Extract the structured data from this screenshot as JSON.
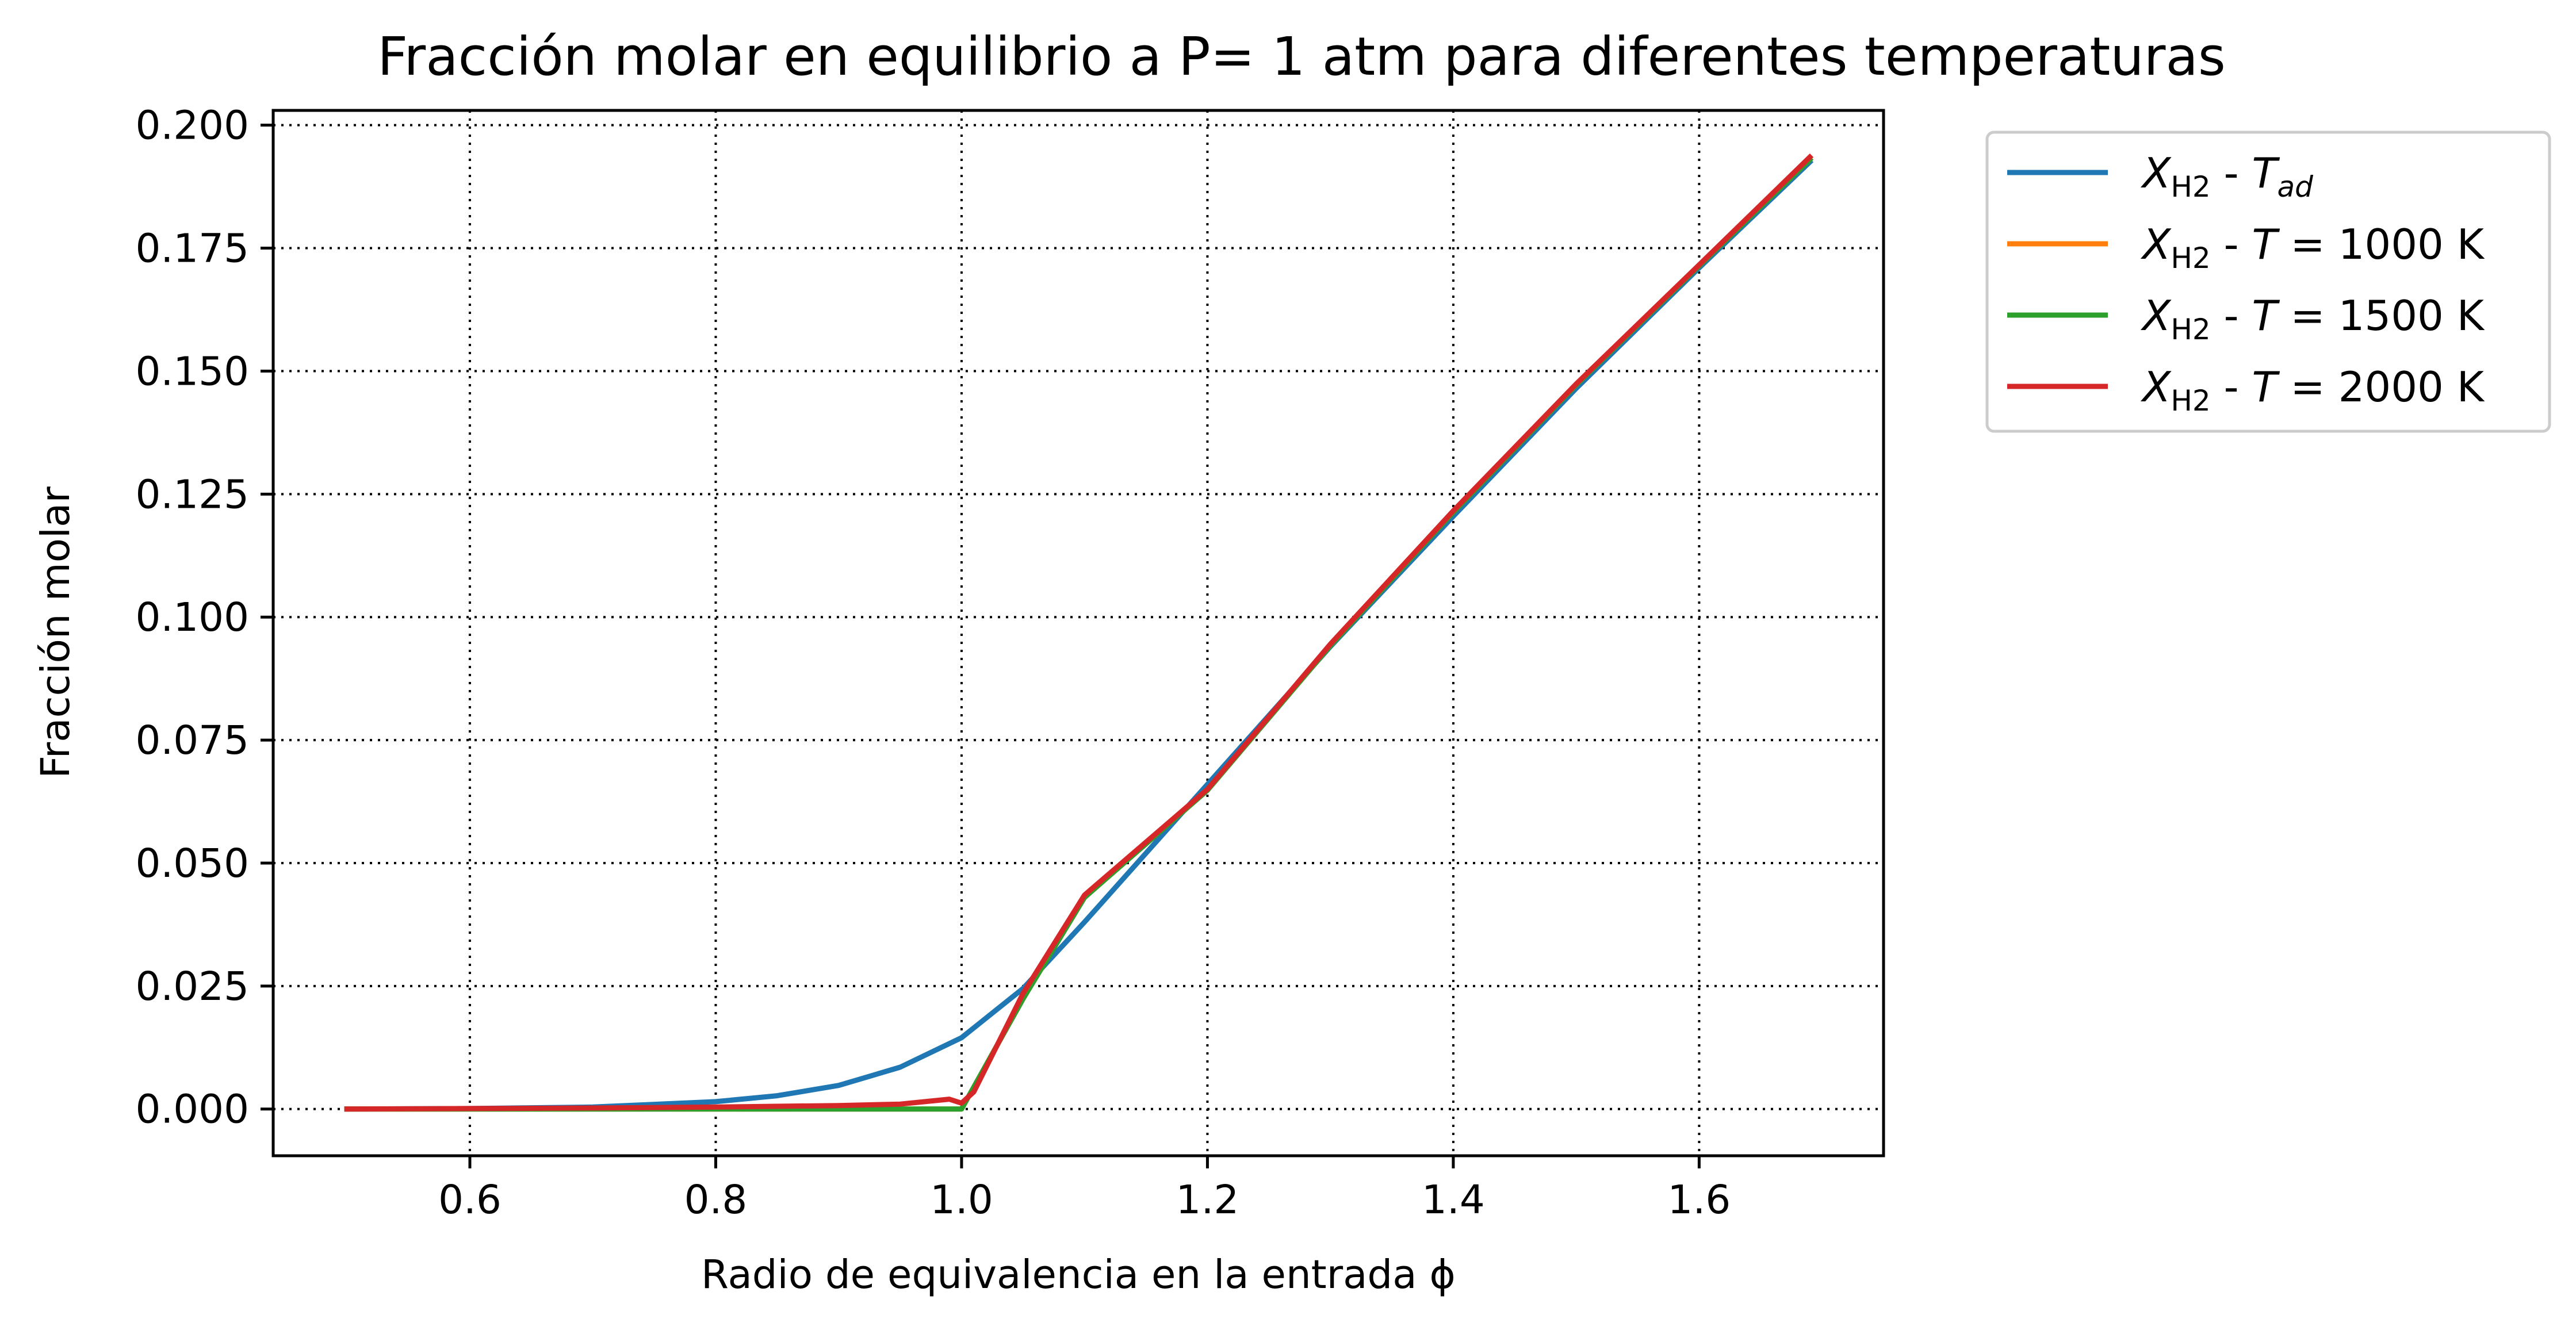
{
  "chart_data": {
    "type": "line",
    "title": "Fracción molar en equilibrio a P= 1 atm para diferentes temperaturas",
    "xlabel": "Radio de equivalencia en la entrada ϕ",
    "ylabel": "Fracción molar",
    "xlim": [
      0.44,
      1.75
    ],
    "ylim": [
      -0.0095,
      0.203
    ],
    "xticks": [
      "0.6",
      "0.8",
      "1.0",
      "1.2",
      "1.4",
      "1.6"
    ],
    "yticks": [
      "0.000",
      "0.025",
      "0.050",
      "0.075",
      "0.100",
      "0.125",
      "0.150",
      "0.175",
      "0.200"
    ],
    "grid": true,
    "grid_style": "dotted",
    "legend_position": "outside-right-top",
    "series": [
      {
        "name": "X_H2 - T_ad",
        "color": "#1f77b4",
        "x": [
          0.5,
          0.6,
          0.7,
          0.8,
          0.85,
          0.9,
          0.95,
          1.0,
          1.05,
          1.1,
          1.15,
          1.2,
          1.3,
          1.4,
          1.5,
          1.6,
          1.69
        ],
        "y": [
          0.0,
          0.0001,
          0.0004,
          0.0015,
          0.0027,
          0.0048,
          0.0085,
          0.0145,
          0.0245,
          0.038,
          0.052,
          0.066,
          0.094,
          0.1205,
          0.1465,
          0.171,
          0.1925
        ]
      },
      {
        "name": "X_H2 - T=1000 K",
        "color": "#ff7f0e",
        "x": [
          0.5,
          0.6,
          0.7,
          0.8,
          0.9,
          1.0,
          1.05,
          1.1,
          1.2,
          1.3,
          1.4,
          1.5,
          1.6,
          1.69
        ],
        "y": [
          0.0,
          0.0,
          0.0,
          0.0,
          0.0,
          0.0,
          0.0224,
          0.043,
          0.0648,
          0.0942,
          0.1213,
          0.1472,
          0.1714,
          0.193
        ]
      },
      {
        "name": "X_H2 - T=1500 K",
        "color": "#2ca02c",
        "x": [
          0.5,
          0.6,
          0.7,
          0.8,
          0.9,
          1.0,
          1.05,
          1.1,
          1.2,
          1.3,
          1.4,
          1.5,
          1.6,
          1.69
        ],
        "y": [
          0.0,
          0.0,
          0.0,
          0.0,
          0.0,
          0.0,
          0.0224,
          0.043,
          0.0648,
          0.0942,
          0.1213,
          0.1472,
          0.1714,
          0.193
        ]
      },
      {
        "name": "X_H2 - T=2000 K",
        "color": "#d62728",
        "x": [
          0.5,
          0.6,
          0.7,
          0.8,
          0.9,
          0.95,
          0.99,
          1.0,
          1.01,
          1.05,
          1.1,
          1.2,
          1.3,
          1.4,
          1.5,
          1.6,
          1.69
        ],
        "y": [
          0.0,
          0.0001,
          0.0002,
          0.0004,
          0.0007,
          0.001,
          0.002,
          0.0012,
          0.0035,
          0.0235,
          0.0435,
          0.065,
          0.0945,
          0.1216,
          0.1474,
          0.1716,
          0.1935
        ]
      }
    ]
  },
  "legend": {
    "entries": [
      {
        "var": "X",
        "sub": "H2",
        "sep": " - ",
        "tvar": "T",
        "tsub": "ad",
        "tail": ""
      },
      {
        "var": "X",
        "sub": "H2",
        "sep": " - ",
        "tvar": "T",
        "tsub": "",
        "tail": " = 1000 K"
      },
      {
        "var": "X",
        "sub": "H2",
        "sep": " - ",
        "tvar": "T",
        "tsub": "",
        "tail": " = 1500 K"
      },
      {
        "var": "X",
        "sub": "H2",
        "sep": " - ",
        "tvar": "T",
        "tsub": "",
        "tail": " = 2000 K"
      }
    ]
  }
}
